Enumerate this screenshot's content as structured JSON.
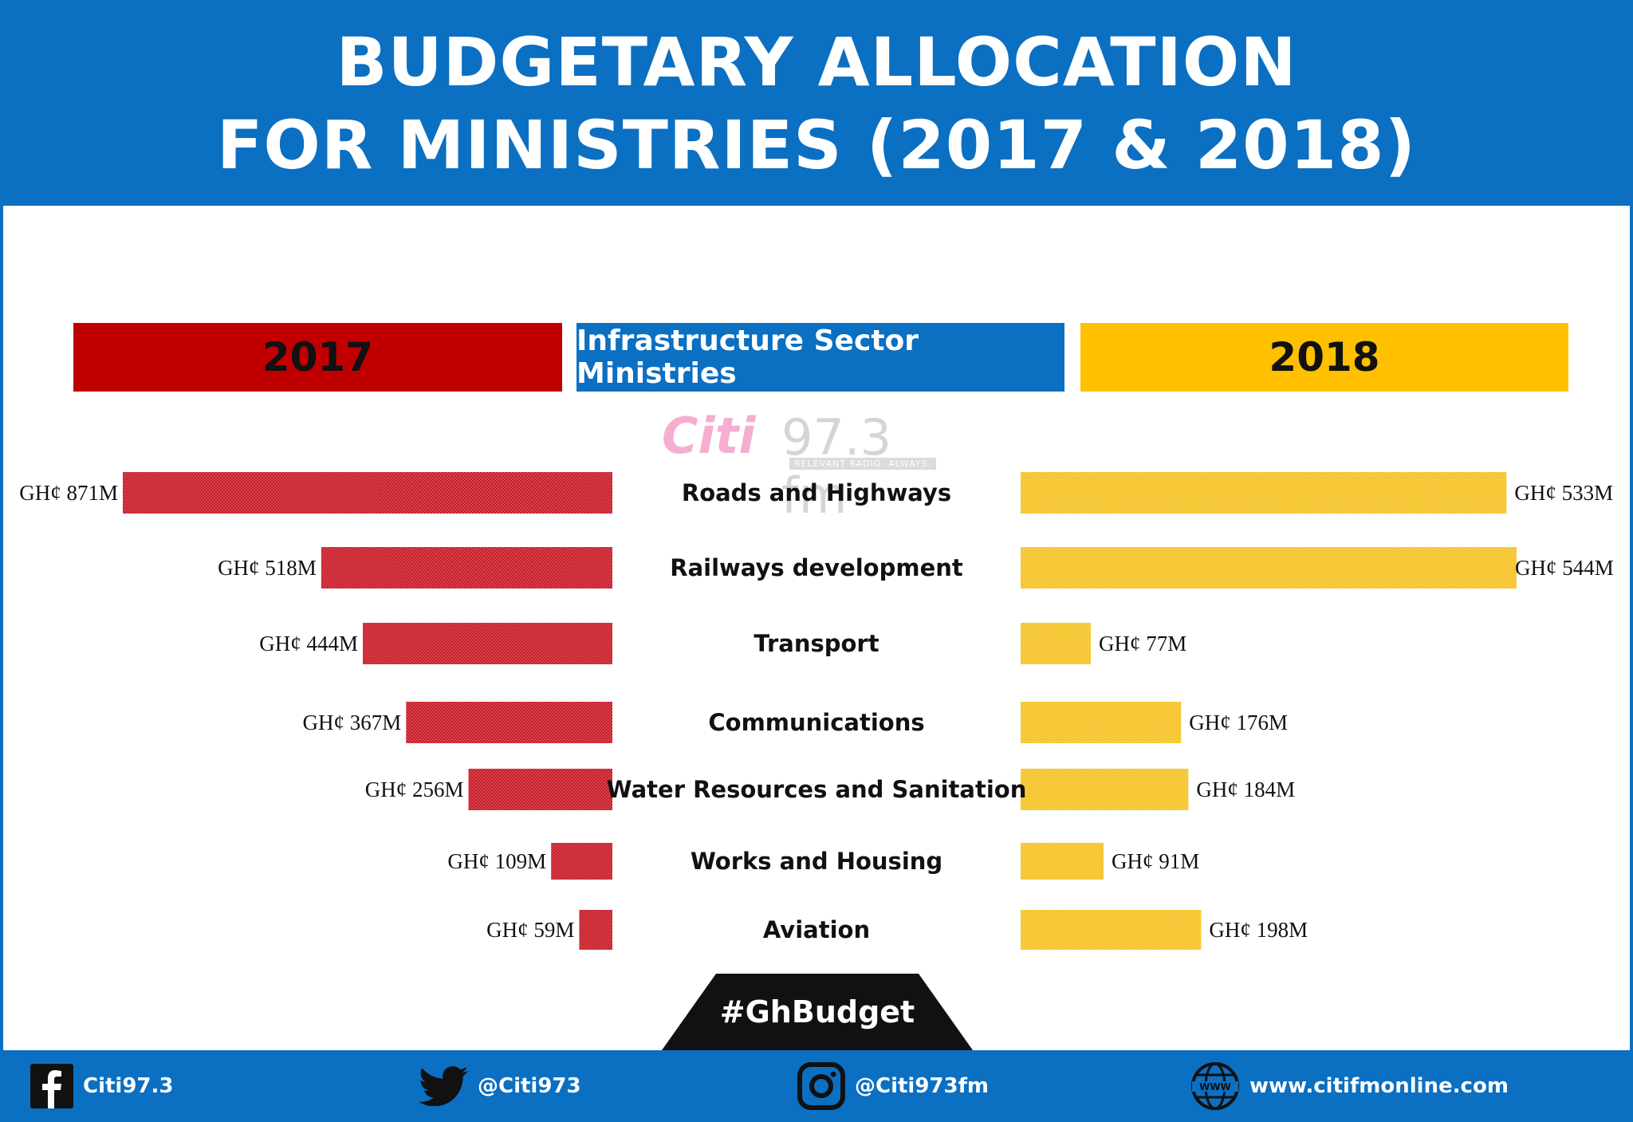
{
  "header": {
    "title_line1": "BUDGETARY ALLOCATION",
    "title_line2": "FOR MINISTRIES (2017 & 2018)"
  },
  "bands": {
    "left": "2017",
    "middle": "Infrastructure Sector Ministries",
    "right": "2018"
  },
  "watermark": {
    "brand": "Citi",
    "frequency": "97.3 fm",
    "tagline": "RELEVANT RADIO. ALWAYS."
  },
  "chart_data": {
    "type": "bar",
    "categories": [
      "Roads and Highways",
      "Railways development",
      "Transport",
      "Communications",
      "Water Resources and Sanitation",
      "Works and Housing",
      "Aviation"
    ],
    "series": [
      {
        "name": "2017",
        "values": [
          871,
          518,
          444,
          367,
          256,
          109,
          59
        ],
        "labels": [
          "GH¢ 871M",
          "GH¢ 518M",
          "GH¢ 444M",
          "GH¢ 367M",
          "GH¢ 256M",
          "GH¢ 109M",
          "GH¢ 59M"
        ],
        "color": "#c8202c"
      },
      {
        "name": "2018",
        "values": [
          533,
          544,
          77,
          176,
          184,
          91,
          198
        ],
        "labels": [
          "GH¢ 533M",
          "GH¢ 544M",
          "GH¢ 77M",
          "GH¢ 176M",
          "GH¢ 184M",
          "GH¢ 91M",
          "GH¢ 198M"
        ],
        "color": "#f5c226"
      }
    ],
    "unit": "GH¢ M",
    "legend": "top"
  },
  "hashtag": "#GhBudget",
  "footer": {
    "facebook": "Citi97.3",
    "twitter": "@Citi973",
    "instagram": "@Citi973fm",
    "website": "www.citifmonline.com"
  },
  "icons": {
    "facebook": "facebook-icon",
    "twitter": "twitter-icon",
    "instagram": "instagram-icon",
    "website": "globe-icon"
  },
  "colors": {
    "brand_blue": "#0b6fc2",
    "red_2017": "#c00000",
    "yellow_2018": "#ffc000"
  }
}
